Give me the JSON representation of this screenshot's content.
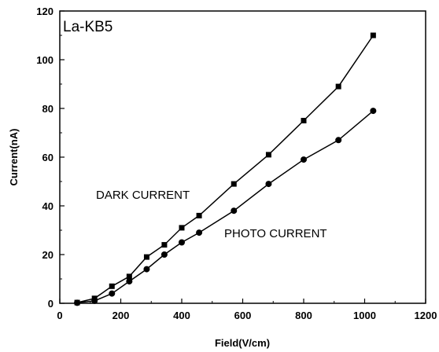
{
  "chart_data": {
    "type": "line",
    "title": "La-KB5",
    "xlabel": "Field(V/cm)",
    "ylabel": "Current(nA)",
    "xlim": [
      0,
      1200
    ],
    "ylim": [
      0,
      120
    ],
    "xticks": [
      0,
      200,
      400,
      600,
      800,
      1000,
      1200
    ],
    "yticks": [
      0,
      20,
      40,
      60,
      80,
      100,
      120
    ],
    "grid": false,
    "legend": "none",
    "annotations": [
      "DARK CURRENT",
      "PHOTO CURRENT"
    ],
    "series": [
      {
        "marker": "square",
        "color": "#000000",
        "x": [
          57,
          114,
          171,
          228,
          285,
          343,
          400,
          457,
          571,
          685,
          800,
          914,
          1028
        ],
        "y": [
          0.3,
          2,
          7,
          11,
          19,
          24,
          31,
          36,
          49,
          61,
          75,
          89,
          110
        ]
      },
      {
        "marker": "circle",
        "color": "#000000",
        "x": [
          57,
          114,
          171,
          228,
          285,
          343,
          400,
          457,
          571,
          685,
          800,
          914,
          1028
        ],
        "y": [
          0.2,
          1,
          4,
          9,
          14,
          20,
          25,
          29,
          38,
          49,
          59,
          67,
          79
        ]
      }
    ]
  }
}
